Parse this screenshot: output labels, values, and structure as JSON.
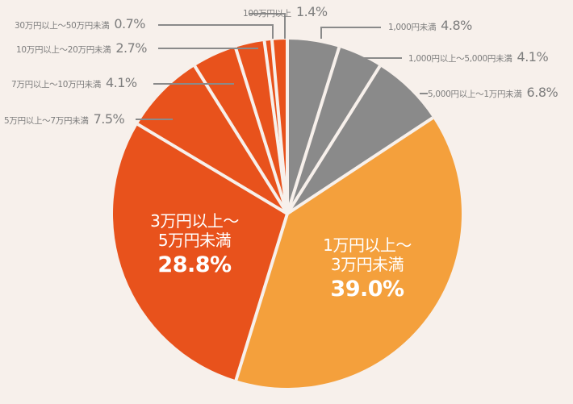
{
  "chart_data": {
    "type": "pie",
    "title": "",
    "start_angle_deg": 0,
    "direction": "clockwise",
    "center": [
      356,
      265
    ],
    "radius": 216,
    "background": "#f7f0eb",
    "separator_color": "#f7f0eb",
    "slices": [
      {
        "label": "1,000円未満",
        "value": 4.8,
        "display": "4.8%",
        "color": "#8a8a8a"
      },
      {
        "label": "1,000円以上～5,000円未満",
        "value": 4.1,
        "display": "4.1%",
        "color": "#8a8a8a"
      },
      {
        "label": "5,000円以上～1万円未満",
        "value": 6.8,
        "display": "6.8%",
        "color": "#8a8a8a"
      },
      {
        "label": "1万円以上～3万円未満",
        "value": 39.0,
        "display": "39.0%",
        "color": "#f4a03c"
      },
      {
        "label": "3万円以上～5万円未満",
        "value": 28.8,
        "display": "28.8%",
        "color": "#e8521c"
      },
      {
        "label": "5万円以上～7万円未満",
        "value": 7.5,
        "display": "7.5%",
        "color": "#e8521c"
      },
      {
        "label": "7万円以上～10万円未満",
        "value": 4.1,
        "display": "4.1%",
        "color": "#e8521c"
      },
      {
        "label": "10万円以上～20万円未満",
        "value": 2.7,
        "display": "2.7%",
        "color": "#e8521c"
      },
      {
        "label": "30万円以上～50万円未満",
        "value": 0.7,
        "display": "0.7%",
        "color": "#e8521c"
      },
      {
        "label": "100万円以上",
        "value": 1.4,
        "display": "1.4%",
        "color": "#e8521c"
      }
    ]
  },
  "labels": {
    "s0": {
      "cat": "1,000円未満",
      "pct": "4.8%"
    },
    "s1": {
      "cat": "1,000円以上～5,000円未満",
      "pct": "4.1%"
    },
    "s2": {
      "cat": "5,000円以上～1万円未満",
      "pct": "6.8%"
    },
    "s3": {
      "cat1": "1万円以上～",
      "cat2": "3万円未満",
      "pct": "39.0%"
    },
    "s4": {
      "cat1": "3万円以上～",
      "cat2": "5万円未満",
      "pct": "28.8%"
    },
    "s5": {
      "cat": "5万円以上～7万円未満",
      "pct": "7.5%"
    },
    "s6": {
      "cat": "7万円以上～10万円未満",
      "pct": "4.1%"
    },
    "s7": {
      "cat": "10万円以上～20万円未満",
      "pct": "2.7%"
    },
    "s8": {
      "cat": "30万円以上～50万円未満",
      "pct": "0.7%"
    },
    "s9": {
      "cat": "100万円以上",
      "pct": "1.4%"
    }
  }
}
